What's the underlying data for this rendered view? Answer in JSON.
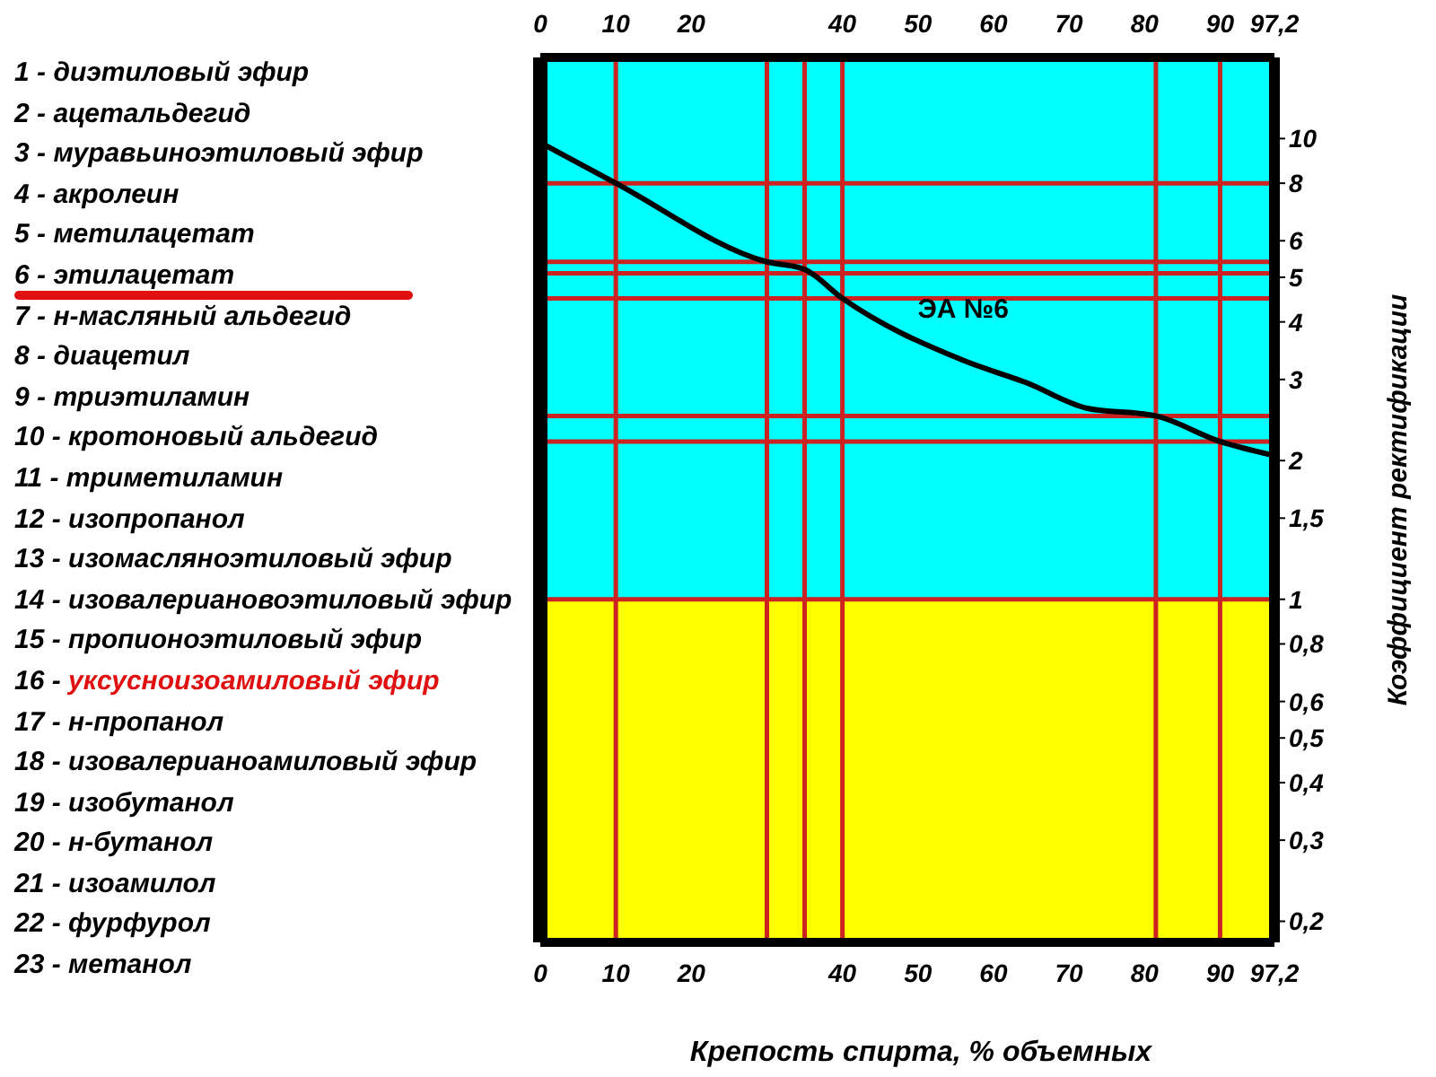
{
  "chart_data": {
    "type": "line",
    "xlabel": "Крепость спирта, % объемных",
    "ylabel": "Коэффициент ректификации",
    "x": [
      0,
      10,
      30,
      35,
      40,
      56,
      64.4,
      72.3,
      81.5,
      90,
      97.2
    ],
    "series": [
      {
        "name": "ЭА №6",
        "color": "#000000",
        "values": [
          9.8,
          8,
          5.4,
          5.2,
          4.5,
          3.3,
          2.95,
          2.6,
          2.5,
          2.2,
          2.05
        ]
      }
    ],
    "xlim": [
      0,
      97.2
    ],
    "xticks": [
      0,
      10,
      20,
      40,
      50,
      60,
      70,
      80,
      90,
      {
        "value": 97.2,
        "label": "97,2"
      }
    ],
    "x2lim": [
      0,
      97.2
    ],
    "x2ticks": [
      0,
      10,
      20,
      40,
      50,
      60,
      70,
      80,
      90,
      {
        "value": 97.2,
        "label": "97,2"
      }
    ],
    "ylim": [
      0.18,
      15
    ],
    "yticks": [
      {
        "value": 0.2,
        "label": "0,2"
      },
      {
        "value": 0.3,
        "label": "0,3"
      },
      {
        "value": 0.4,
        "label": "0,4"
      },
      {
        "value": 0.5,
        "label": "0,5"
      },
      {
        "value": 0.6,
        "label": "0,6"
      },
      {
        "value": 0.8,
        "label": "0,8"
      },
      1,
      {
        "value": 1.5,
        "label": "1,5"
      },
      2,
      3,
      4,
      5,
      6,
      8,
      10
    ],
    "log": true,
    "legend": false,
    "marker": "none",
    "line_style": "solid",
    "bands": [
      {
        "axis": "y",
        "from": 1,
        "to": 15,
        "color": "#00ffff"
      },
      {
        "axis": "y",
        "from": 0.18,
        "to": 1,
        "color": "#ffff00"
      }
    ],
    "ref_lines": [
      {
        "axis": "x",
        "value": 10,
        "color": "#cc2222"
      },
      {
        "axis": "x",
        "value": 30,
        "color": "#cc2222"
      },
      {
        "axis": "x",
        "value": 35,
        "color": "#cc2222"
      },
      {
        "axis": "x",
        "value": 40,
        "color": "#cc2222"
      },
      {
        "axis": "x",
        "value": 81.5,
        "color": "#cc2222"
      },
      {
        "axis": "x",
        "value": 90,
        "color": "#cc2222"
      },
      {
        "axis": "y",
        "value": 8,
        "color": "#cc2222"
      },
      {
        "axis": "y",
        "value": 5.4,
        "color": "#cc2222"
      },
      {
        "axis": "y",
        "value": 5.1,
        "color": "#cc2222"
      },
      {
        "axis": "y",
        "value": 4.5,
        "color": "#cc2222"
      },
      {
        "axis": "y",
        "value": 2.5,
        "color": "#cc2222"
      },
      {
        "axis": "y",
        "value": 2.2,
        "color": "#cc2222"
      },
      {
        "axis": "y",
        "value": 1,
        "color": "#cc2222"
      }
    ],
    "annotations": [
      "1 - диэтиловый эфир",
      "2 - ацетальдегид",
      "3 - муравьиноэтиловый эфир",
      "4 - акролеин",
      "5 - метилацетат",
      "6 - этилацетат",
      "7 - н-масляный альдегид",
      "8 - диацетил",
      "9 - триэтиламин",
      "10 - кротоновый альдегид",
      "11 - триметиламин",
      "12 - изопропанол",
      "13 - изомасляноэтиловый эфир",
      "14 - изовалериановоэтиловый эфир",
      "15 - пропионоэтиловый эфир",
      "16 - уксусноизоамиловый эфир",
      "17 - н-пропанол",
      "18 - изовалерианоамиловый эфир",
      "19 - изобутанол",
      "20 - н-бутанол",
      "21 - изоамилол",
      "22 - фурфурол",
      "23 - метанол"
    ]
  }
}
